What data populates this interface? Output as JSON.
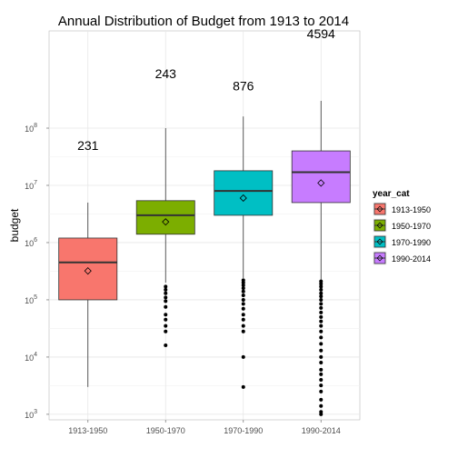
{
  "chart_data": {
    "type": "boxplot",
    "title": "Annual Distribution of Budget from 1913 to 2014",
    "xlabel": "",
    "ylabel": "budget",
    "y_scale": "log10",
    "ylim": [
      800,
      5000000000
    ],
    "y_ticks": [
      1000,
      10000,
      100000,
      1000000,
      10000000,
      100000000
    ],
    "y_tick_labels": [
      {
        "base": "10",
        "exp": "3"
      },
      {
        "base": "10",
        "exp": "4"
      },
      {
        "base": "10",
        "exp": "5"
      },
      {
        "base": "10",
        "exp": "6"
      },
      {
        "base": "10",
        "exp": "7"
      },
      {
        "base": "10",
        "exp": "8"
      }
    ],
    "grid": true,
    "legend": {
      "title": "year_cat",
      "position": "right"
    },
    "categories": [
      "1913-1950",
      "1950-1970",
      "1970-1990",
      "1990-2014"
    ],
    "colors": [
      "#F8766D",
      "#7CAE00",
      "#00BFC4",
      "#C77CFF"
    ],
    "boxes": [
      {
        "category": "1913-1950",
        "count": "231",
        "label_y": 50000000,
        "q1": 100000,
        "median": 450000,
        "q3": 1200000,
        "whisker_low": 3000,
        "whisker_high": 5000000,
        "mean": 320000,
        "outliers": []
      },
      {
        "category": "1950-1970",
        "count": "243",
        "label_y": 900000000,
        "q1": 1400000,
        "median": 3000000,
        "q3": 5400000,
        "whisker_low": 200000,
        "whisker_high": 100000000,
        "mean": 2300000,
        "outliers": [
          170000,
          150000,
          130000,
          110000,
          95000,
          75000,
          55000,
          45000,
          35000,
          28000,
          16000
        ]
      },
      {
        "category": "1970-1990",
        "count": "876",
        "label_y": 550000000,
        "q1": 3000000,
        "median": 8000000,
        "q3": 18000000,
        "whisker_low": 240000,
        "whisker_high": 160000000,
        "mean": 6000000,
        "outliers": [
          220000,
          200000,
          180000,
          160000,
          140000,
          120000,
          100000,
          85000,
          70000,
          55000,
          45000,
          35000,
          28000,
          10000,
          3000
        ]
      },
      {
        "category": "1990-2014",
        "count": "4594",
        "label_y": 4500000000,
        "q1": 5000000,
        "median": 17000000,
        "q3": 40000000,
        "whisker_low": 220000,
        "whisker_high": 300000000,
        "mean": 11000000,
        "outliers": [
          210000,
          190000,
          170000,
          150000,
          130000,
          115000,
          100000,
          85000,
          72000,
          60000,
          50000,
          42000,
          35000,
          28000,
          22000,
          17000,
          13000,
          10000,
          8000,
          6000,
          5000,
          4000,
          3200,
          2500,
          1800,
          1400,
          1100,
          1000
        ]
      }
    ]
  }
}
